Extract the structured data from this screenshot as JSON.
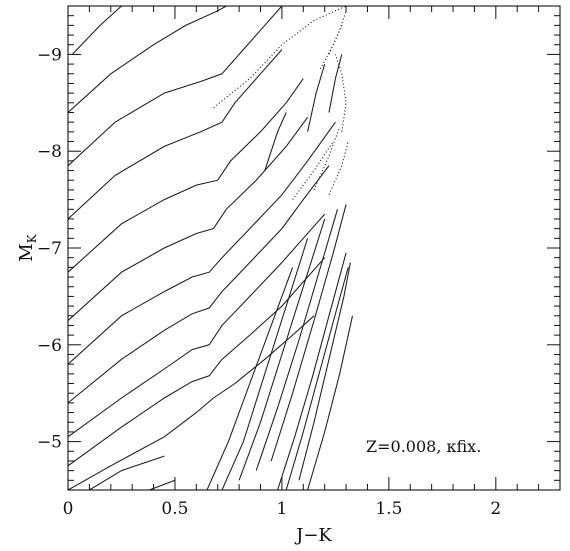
{
  "chart_data": {
    "type": "line",
    "xlabel": "J−K",
    "ylabel": "M",
    "ylabel_subscript": "K",
    "annotation": "Z=0.008,  κfix.",
    "xlim": [
      0,
      2.3
    ],
    "ylim": [
      -4.5,
      -9.5
    ],
    "y_inverted": true,
    "grid": false,
    "x_ticks": [
      0,
      0.5,
      1,
      1.5,
      2
    ],
    "x_tick_labels": [
      "0",
      "0.5",
      "1",
      "1.5",
      "2"
    ],
    "y_ticks": [
      -5,
      -6,
      -7,
      -8,
      -9
    ],
    "y_tick_labels": [
      "−5",
      "−6",
      "−7",
      "−8",
      "−9"
    ],
    "series": [
      {
        "style": "solid",
        "points": [
          [
            0,
            -4.5
          ],
          [
            0.2,
            -4.75
          ],
          [
            0.45,
            -5.05
          ],
          [
            0.6,
            -5.3
          ],
          [
            0.68,
            -5.45
          ],
          [
            0.78,
            -5.6
          ],
          [
            0.92,
            -5.85
          ],
          [
            1.05,
            -6.1
          ],
          [
            1.15,
            -6.3
          ]
        ]
      },
      {
        "style": "solid",
        "points": [
          [
            0,
            -4.75
          ],
          [
            0.25,
            -5.15
          ],
          [
            0.45,
            -5.45
          ],
          [
            0.58,
            -5.62
          ],
          [
            0.66,
            -5.68
          ],
          [
            0.72,
            -5.85
          ],
          [
            0.85,
            -6.1
          ],
          [
            1.0,
            -6.4
          ],
          [
            1.12,
            -6.7
          ],
          [
            1.2,
            -6.9
          ]
        ]
      },
      {
        "style": "solid",
        "points": [
          [
            0,
            -5.05
          ],
          [
            0.25,
            -5.45
          ],
          [
            0.45,
            -5.75
          ],
          [
            0.58,
            -5.95
          ],
          [
            0.66,
            -6.0
          ],
          [
            0.72,
            -6.2
          ],
          [
            0.85,
            -6.5
          ],
          [
            1.0,
            -6.85
          ],
          [
            1.1,
            -7.1
          ],
          [
            1.2,
            -7.35
          ]
        ]
      },
      {
        "style": "solid",
        "points": [
          [
            0,
            -5.4
          ],
          [
            0.25,
            -5.85
          ],
          [
            0.45,
            -6.15
          ],
          [
            0.58,
            -6.32
          ],
          [
            0.66,
            -6.38
          ],
          [
            0.72,
            -6.55
          ],
          [
            0.85,
            -6.85
          ],
          [
            1.0,
            -7.2
          ],
          [
            1.1,
            -7.5
          ],
          [
            1.22,
            -7.85
          ]
        ]
      },
      {
        "style": "solid",
        "points": [
          [
            0,
            -5.8
          ],
          [
            0.25,
            -6.3
          ],
          [
            0.45,
            -6.55
          ],
          [
            0.58,
            -6.7
          ],
          [
            0.66,
            -6.75
          ],
          [
            0.72,
            -6.9
          ],
          [
            0.85,
            -7.2
          ],
          [
            1.0,
            -7.55
          ],
          [
            1.12,
            -7.9
          ],
          [
            1.25,
            -8.3
          ]
        ]
      },
      {
        "style": "solid",
        "points": [
          [
            0,
            -6.25
          ],
          [
            0.25,
            -6.75
          ],
          [
            0.45,
            -7.0
          ],
          [
            0.6,
            -7.15
          ],
          [
            0.68,
            -7.2
          ],
          [
            0.74,
            -7.4
          ],
          [
            0.88,
            -7.7
          ],
          [
            1.02,
            -8.05
          ],
          [
            1.12,
            -8.35
          ]
        ]
      },
      {
        "style": "solid",
        "points": [
          [
            0,
            -6.75
          ],
          [
            0.25,
            -7.25
          ],
          [
            0.45,
            -7.5
          ],
          [
            0.6,
            -7.65
          ],
          [
            0.7,
            -7.7
          ],
          [
            0.76,
            -7.9
          ],
          [
            0.9,
            -8.2
          ],
          [
            1.02,
            -8.5
          ],
          [
            1.1,
            -8.75
          ]
        ]
      },
      {
        "style": "solid",
        "points": [
          [
            0,
            -7.3
          ],
          [
            0.22,
            -7.75
          ],
          [
            0.45,
            -8.05
          ],
          [
            0.62,
            -8.2
          ],
          [
            0.72,
            -8.3
          ],
          [
            0.78,
            -8.5
          ],
          [
            0.9,
            -8.8
          ],
          [
            1.0,
            -9.05
          ]
        ]
      },
      {
        "style": "solid",
        "points": [
          [
            0,
            -7.85
          ],
          [
            0.22,
            -8.3
          ],
          [
            0.45,
            -8.6
          ],
          [
            0.62,
            -8.72
          ],
          [
            0.72,
            -8.8
          ],
          [
            0.8,
            -9.0
          ],
          [
            0.9,
            -9.25
          ],
          [
            1.0,
            -9.5
          ]
        ]
      },
      {
        "style": "solid",
        "points": [
          [
            0,
            -8.4
          ],
          [
            0.2,
            -8.8
          ],
          [
            0.4,
            -9.1
          ],
          [
            0.55,
            -9.3
          ],
          [
            0.7,
            -9.45
          ],
          [
            0.74,
            -9.5
          ]
        ]
      },
      {
        "style": "solid",
        "points": [
          [
            0.02,
            -9.0
          ],
          [
            0.15,
            -9.3
          ],
          [
            0.25,
            -9.5
          ]
        ]
      },
      {
        "style": "solid",
        "points": [
          [
            0.1,
            -4.5
          ],
          [
            0.25,
            -4.7
          ],
          [
            0.45,
            -4.85
          ]
        ]
      },
      {
        "style": "solid",
        "points": [
          [
            0.38,
            -4.5
          ],
          [
            0.5,
            -4.6
          ]
        ]
      },
      {
        "style": "solid",
        "points": [
          [
            0.65,
            -4.5
          ],
          [
            0.75,
            -5.0
          ],
          [
            0.85,
            -5.6
          ],
          [
            0.95,
            -6.2
          ],
          [
            1.05,
            -6.8
          ]
        ]
      },
      {
        "style": "solid",
        "points": [
          [
            0.72,
            -4.5
          ],
          [
            0.82,
            -5.0
          ],
          [
            0.92,
            -5.7
          ],
          [
            1.02,
            -6.4
          ],
          [
            1.12,
            -7.1
          ]
        ]
      },
      {
        "style": "solid",
        "points": [
          [
            0.8,
            -4.6
          ],
          [
            0.9,
            -5.2
          ],
          [
            1.0,
            -5.9
          ],
          [
            1.1,
            -6.6
          ],
          [
            1.2,
            -7.3
          ]
        ]
      },
      {
        "style": "solid",
        "points": [
          [
            0.88,
            -4.7
          ],
          [
            0.98,
            -5.35
          ],
          [
            1.08,
            -6.05
          ],
          [
            1.18,
            -6.8
          ],
          [
            1.26,
            -7.4
          ]
        ]
      },
      {
        "style": "solid",
        "points": [
          [
            0.95,
            -4.8
          ],
          [
            1.05,
            -5.5
          ],
          [
            1.15,
            -6.25
          ],
          [
            1.24,
            -6.95
          ],
          [
            1.3,
            -7.45
          ]
        ]
      },
      {
        "style": "solid",
        "points": [
          [
            0.98,
            -4.5
          ],
          [
            1.06,
            -5.05
          ],
          [
            1.14,
            -5.65
          ],
          [
            1.22,
            -6.3
          ],
          [
            1.3,
            -6.95
          ]
        ]
      },
      {
        "style": "solid",
        "points": [
          [
            1.02,
            -4.5
          ],
          [
            1.1,
            -5.1
          ],
          [
            1.18,
            -5.75
          ],
          [
            1.26,
            -6.4
          ],
          [
            1.31,
            -6.8
          ]
        ]
      },
      {
        "style": "solid",
        "points": [
          [
            1.08,
            -4.6
          ],
          [
            1.15,
            -5.2
          ],
          [
            1.22,
            -5.85
          ],
          [
            1.29,
            -6.5
          ],
          [
            1.32,
            -6.85
          ]
        ]
      },
      {
        "style": "solid",
        "points": [
          [
            1.12,
            -4.5
          ],
          [
            1.2,
            -5.1
          ],
          [
            1.27,
            -5.7
          ],
          [
            1.33,
            -6.3
          ]
        ]
      },
      {
        "style": "solid",
        "points": [
          [
            0.92,
            -7.8
          ],
          [
            0.98,
            -8.2
          ],
          [
            1.02,
            -8.4
          ]
        ]
      },
      {
        "style": "solid",
        "points": [
          [
            1.12,
            -8.2
          ],
          [
            1.16,
            -8.6
          ],
          [
            1.2,
            -8.9
          ]
        ]
      },
      {
        "style": "solid",
        "points": [
          [
            1.22,
            -8.4
          ],
          [
            1.25,
            -8.75
          ],
          [
            1.28,
            -9.0
          ]
        ]
      },
      {
        "style": "dotted",
        "points": [
          [
            0.68,
            -8.45
          ],
          [
            0.85,
            -8.75
          ],
          [
            1.0,
            -9.1
          ],
          [
            1.15,
            -9.35
          ],
          [
            1.3,
            -9.5
          ]
        ]
      },
      {
        "style": "dotted",
        "points": [
          [
            1.22,
            -9.0
          ],
          [
            1.27,
            -9.25
          ],
          [
            1.3,
            -9.45
          ]
        ]
      },
      {
        "style": "dotted",
        "points": [
          [
            1.28,
            -8.2
          ],
          [
            1.3,
            -8.5
          ],
          [
            1.28,
            -8.8
          ],
          [
            1.25,
            -9.0
          ]
        ]
      },
      {
        "style": "dotted",
        "points": [
          [
            1.22,
            -7.55
          ],
          [
            1.28,
            -7.85
          ],
          [
            1.31,
            -8.1
          ]
        ]
      },
      {
        "style": "dotted",
        "points": [
          [
            1.15,
            -7.6
          ],
          [
            1.22,
            -7.95
          ],
          [
            1.27,
            -8.25
          ]
        ]
      },
      {
        "style": "dotted",
        "points": [
          [
            1.05,
            -7.5
          ],
          [
            1.15,
            -7.8
          ],
          [
            1.24,
            -8.1
          ]
        ]
      },
      {
        "style": "dotted",
        "points": [
          [
            1.18,
            -8.85
          ],
          [
            1.24,
            -9.1
          ],
          [
            1.28,
            -9.3
          ]
        ]
      }
    ]
  }
}
